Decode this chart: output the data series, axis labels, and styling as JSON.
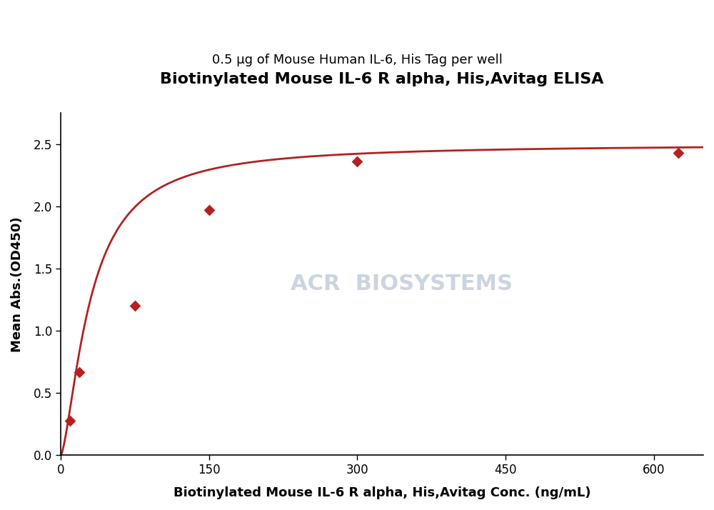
{
  "title": "Biotinylated Mouse IL-6 R alpha, His,Avitag ELISA",
  "subtitle": "0.5 μg of Mouse Human IL-6, His Tag per well",
  "xlabel": "Biotinylated Mouse IL-6 R alpha, His,Avitag Conc. (ng/mL)",
  "ylabel": "Mean Abs.(OD450)",
  "x_data": [
    9.375,
    18.75,
    75.0,
    150.0,
    300.0,
    625.0
  ],
  "y_data": [
    0.28,
    0.67,
    1.2,
    1.97,
    2.36,
    2.43
  ],
  "line_color": "#B22222",
  "marker_color": "#B22222",
  "xlim": [
    0,
    650
  ],
  "ylim": [
    0.0,
    2.75
  ],
  "xticks": [
    0,
    150,
    300,
    450,
    600
  ],
  "yticks": [
    0.0,
    0.5,
    1.0,
    1.5,
    2.0,
    2.5
  ],
  "title_fontsize": 16,
  "subtitle_fontsize": 13,
  "axis_label_fontsize": 13,
  "tick_fontsize": 12,
  "watermark_text": "ACR  BIOSYSTEMS",
  "watermark_color": "#ccd4e0",
  "watermark_fontsize": 22,
  "background_color": "#ffffff"
}
